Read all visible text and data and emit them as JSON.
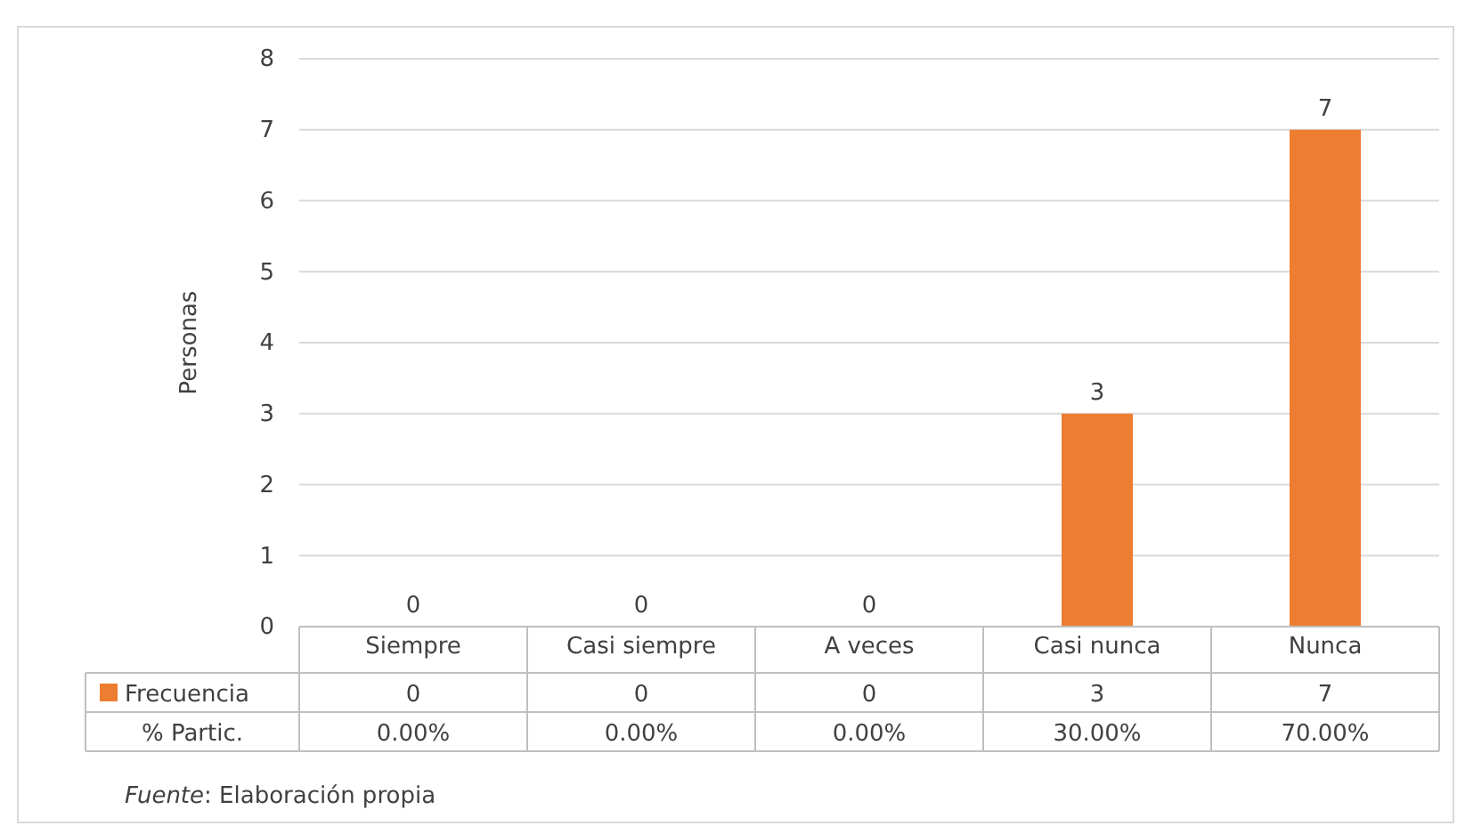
{
  "chart_data": {
    "type": "bar",
    "ylabel": "Personas",
    "categories": [
      "Siempre",
      "Casi siempre",
      "A veces",
      "Casi nunca",
      "Nunca"
    ],
    "series": [
      {
        "name": "Frecuencia",
        "color": "#ed7d31",
        "values": [
          0,
          0,
          0,
          3,
          7
        ],
        "value_labels": [
          "0",
          "0",
          "0",
          "3",
          "7"
        ]
      }
    ],
    "ylim": [
      0,
      8
    ],
    "yticks": [
      0,
      1,
      2,
      3,
      4,
      5,
      6,
      7,
      8
    ],
    "grid": "y",
    "legend": "bottom",
    "annotations": [
      "0",
      "0",
      "0",
      "3",
      "7",
      "% Partic.",
      "0.00%",
      "0.00%",
      "0.00%",
      "30.00%",
      "70.00%",
      "Fuente: Elaboración propia"
    ]
  }
}
